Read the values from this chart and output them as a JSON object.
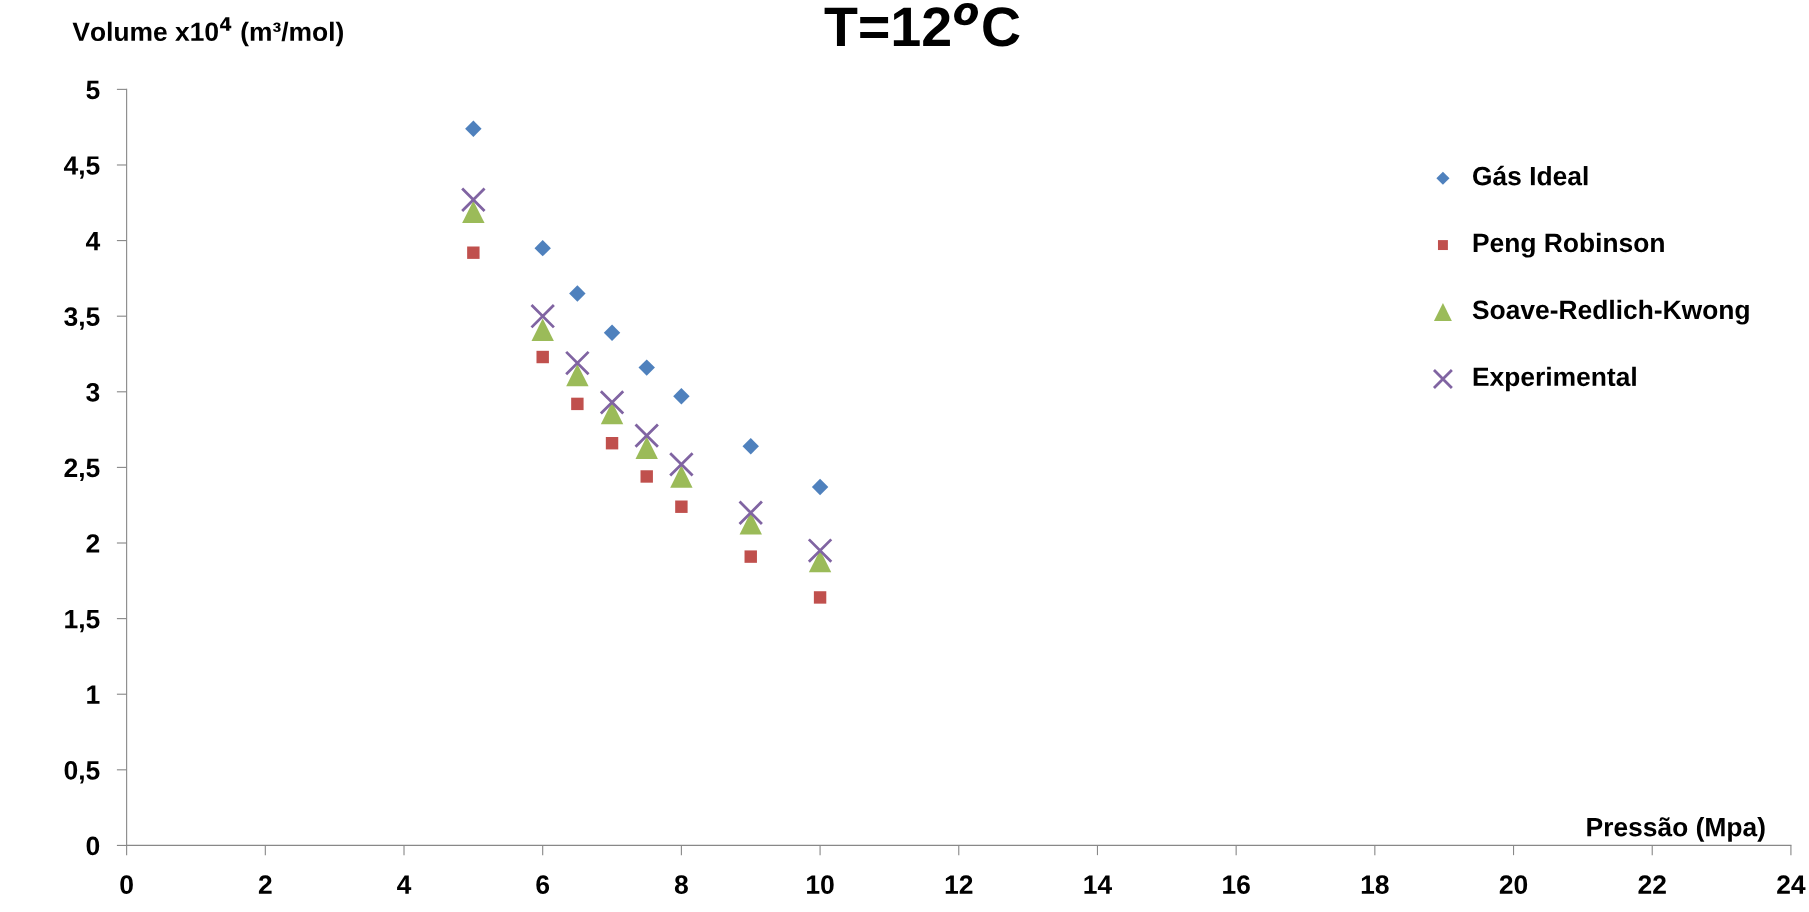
{
  "chart_data": {
    "type": "scatter",
    "title": "T=12$^{o}$C",
    "xlabel": "Pressão (Mpa)",
    "ylabel": "Volume x10$^{4}$ (m³/mol)",
    "x": [
      5,
      6,
      6.5,
      7,
      7.5,
      8,
      9,
      10
    ],
    "series": [
      {
        "name": "Gás Ideal",
        "color": "#4f81bd",
        "marker": "diamond",
        "values": [
          4.74,
          3.95,
          3.65,
          3.39,
          3.16,
          2.97,
          2.64,
          2.37
        ]
      },
      {
        "name": "Peng Robinson",
        "color": "#c0504d",
        "marker": "square",
        "values": [
          3.92,
          3.23,
          2.92,
          2.66,
          2.44,
          2.24,
          1.91,
          1.64
        ]
      },
      {
        "name": "Soave-Redlich-Kwong",
        "color": "#9bbb59",
        "marker": "triangle",
        "values": [
          4.19,
          3.41,
          3.11,
          2.86,
          2.63,
          2.44,
          2.13,
          1.88
        ]
      },
      {
        "name": "Experimental",
        "color": "#8064a2",
        "marker": "cross",
        "values": [
          4.27,
          3.5,
          3.19,
          2.93,
          2.71,
          2.52,
          2.2,
          1.95
        ]
      }
    ],
    "xlim": [
      0,
      24
    ],
    "xticks": [
      0,
      2,
      4,
      6,
      8,
      10,
      12,
      14,
      16,
      18,
      20,
      22,
      24
    ],
    "ylim": [
      0,
      5
    ],
    "yticks": [
      0,
      {
        "value": 0.5,
        "label": "0,5"
      },
      1,
      {
        "value": 1.5,
        "label": "1,5"
      },
      2,
      {
        "value": 2.5,
        "label": "2,5"
      },
      3,
      {
        "value": 3.5,
        "label": "3,5"
      },
      4,
      {
        "value": 4.5,
        "label": "4,5"
      },
      5
    ],
    "grid": false,
    "legend": "top right"
  }
}
